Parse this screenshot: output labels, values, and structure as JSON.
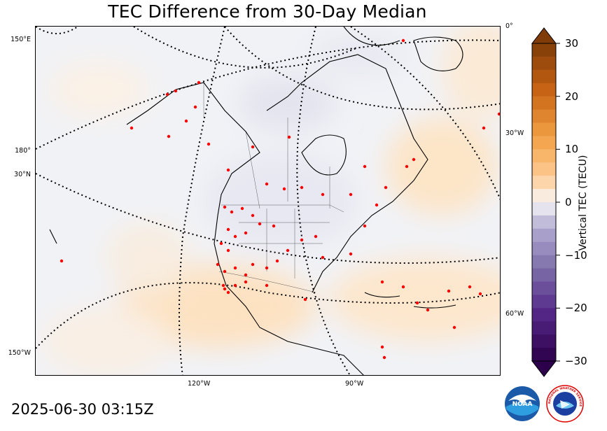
{
  "title": "TEC Difference from 30-Day Median",
  "timestamp": "2025-06-30 03:15Z",
  "map_labels": {
    "left_150E": "150°E",
    "left_180": "180°",
    "left_30N": "30°N",
    "left_150W": "150°W",
    "right_0": "0°",
    "right_30W": "30°W",
    "right_60W": "60°W",
    "bottom_120W": "120°W",
    "bottom_90W": "90°W"
  },
  "colorbar": {
    "label": "Vertical TEC (TECU)",
    "min": -30,
    "max": 30,
    "ticks": [
      "30",
      "20",
      "10",
      "0",
      "−10",
      "−20",
      "−30"
    ],
    "low_color": "#2d004b",
    "mid_color": "#f7f7f7",
    "high_color": "#7f3b08"
  },
  "logos": {
    "noaa_text": "NOAA",
    "nws_text": "NATIONAL WEATHER SERVICE"
  },
  "icons": {
    "noaa": "noaa-logo-icon",
    "nws": "nws-logo-icon"
  }
}
